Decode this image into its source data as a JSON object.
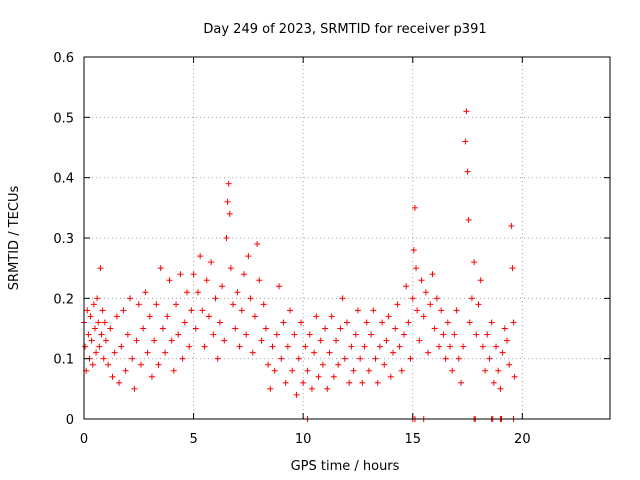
{
  "chart_data": {
    "type": "scatter",
    "title": "Day 249 of 2023, SRMTID for receiver p391",
    "xlabel": "GPS time / hours",
    "ylabel": "SRMTID / TECUs",
    "xlim": [
      0,
      24
    ],
    "ylim": [
      0,
      0.6
    ],
    "xticks": [
      0,
      5,
      10,
      15,
      20
    ],
    "xtick_labels": [
      "0",
      "5",
      "10",
      "15",
      "20"
    ],
    "yticks": [
      0,
      0.1,
      0.2,
      0.3,
      0.4,
      0.5,
      0.6
    ],
    "ytick_labels": [
      "0",
      "0.1",
      "0.2",
      "0.3",
      "0.4",
      "0.5",
      "0.6"
    ],
    "grid": true,
    "marker": "+",
    "color": "#ff0000",
    "series": [
      {
        "name": "SRMTID",
        "points": [
          [
            0.0,
            0.16
          ],
          [
            0.05,
            0.12
          ],
          [
            0.1,
            0.08
          ],
          [
            0.15,
            0.18
          ],
          [
            0.2,
            0.14
          ],
          [
            0.25,
            0.1
          ],
          [
            0.3,
            0.17
          ],
          [
            0.35,
            0.13
          ],
          [
            0.4,
            0.09
          ],
          [
            0.45,
            0.19
          ],
          [
            0.5,
            0.15
          ],
          [
            0.55,
            0.11
          ],
          [
            0.6,
            0.2
          ],
          [
            0.65,
            0.16
          ],
          [
            0.7,
            0.12
          ],
          [
            0.75,
            0.25
          ],
          [
            0.8,
            0.14
          ],
          [
            0.85,
            0.18
          ],
          [
            0.9,
            0.1
          ],
          [
            0.95,
            0.16
          ],
          [
            1.0,
            0.13
          ],
          [
            1.1,
            0.09
          ],
          [
            1.2,
            0.15
          ],
          [
            1.3,
            0.07
          ],
          [
            1.4,
            0.11
          ],
          [
            1.5,
            0.17
          ],
          [
            1.6,
            0.06
          ],
          [
            1.7,
            0.12
          ],
          [
            1.8,
            0.18
          ],
          [
            1.9,
            0.08
          ],
          [
            2.0,
            0.14
          ],
          [
            2.1,
            0.2
          ],
          [
            2.2,
            0.1
          ],
          [
            2.3,
            0.05
          ],
          [
            2.4,
            0.13
          ],
          [
            2.5,
            0.19
          ],
          [
            2.6,
            0.09
          ],
          [
            2.7,
            0.15
          ],
          [
            2.8,
            0.21
          ],
          [
            2.9,
            0.11
          ],
          [
            3.0,
            0.17
          ],
          [
            3.1,
            0.07
          ],
          [
            3.2,
            0.13
          ],
          [
            3.3,
            0.19
          ],
          [
            3.4,
            0.09
          ],
          [
            3.5,
            0.25
          ],
          [
            3.6,
            0.15
          ],
          [
            3.7,
            0.11
          ],
          [
            3.8,
            0.17
          ],
          [
            3.9,
            0.23
          ],
          [
            4.0,
            0.13
          ],
          [
            4.1,
            0.08
          ],
          [
            4.2,
            0.19
          ],
          [
            4.3,
            0.14
          ],
          [
            4.4,
            0.24
          ],
          [
            4.5,
            0.1
          ],
          [
            4.6,
            0.16
          ],
          [
            4.7,
            0.21
          ],
          [
            4.8,
            0.12
          ],
          [
            4.9,
            0.18
          ],
          [
            5.0,
            0.24
          ],
          [
            5.1,
            0.15
          ],
          [
            5.2,
            0.21
          ],
          [
            5.3,
            0.27
          ],
          [
            5.4,
            0.18
          ],
          [
            5.5,
            0.12
          ],
          [
            5.6,
            0.23
          ],
          [
            5.7,
            0.17
          ],
          [
            5.8,
            0.26
          ],
          [
            5.9,
            0.14
          ],
          [
            6.0,
            0.2
          ],
          [
            6.1,
            0.1
          ],
          [
            6.2,
            0.16
          ],
          [
            6.3,
            0.22
          ],
          [
            6.4,
            0.13
          ],
          [
            6.5,
            0.3
          ],
          [
            6.55,
            0.36
          ],
          [
            6.6,
            0.39
          ],
          [
            6.65,
            0.34
          ],
          [
            6.7,
            0.25
          ],
          [
            6.8,
            0.19
          ],
          [
            6.9,
            0.15
          ],
          [
            7.0,
            0.21
          ],
          [
            7.1,
            0.12
          ],
          [
            7.2,
            0.18
          ],
          [
            7.3,
            0.24
          ],
          [
            7.4,
            0.14
          ],
          [
            7.5,
            0.27
          ],
          [
            7.6,
            0.2
          ],
          [
            7.7,
            0.11
          ],
          [
            7.8,
            0.17
          ],
          [
            7.9,
            0.29
          ],
          [
            8.0,
            0.23
          ],
          [
            8.1,
            0.13
          ],
          [
            8.2,
            0.19
          ],
          [
            8.3,
            0.15
          ],
          [
            8.4,
            0.09
          ],
          [
            8.5,
            0.05
          ],
          [
            8.6,
            0.12
          ],
          [
            8.7,
            0.08
          ],
          [
            8.8,
            0.14
          ],
          [
            8.9,
            0.22
          ],
          [
            9.0,
            0.1
          ],
          [
            9.1,
            0.16
          ],
          [
            9.2,
            0.06
          ],
          [
            9.3,
            0.12
          ],
          [
            9.4,
            0.18
          ],
          [
            9.5,
            0.08
          ],
          [
            9.6,
            0.14
          ],
          [
            9.7,
            0.04
          ],
          [
            9.8,
            0.1
          ],
          [
            9.9,
            0.16
          ],
          [
            10.0,
            0.06
          ],
          [
            10.1,
            0.12
          ],
          [
            10.2,
            0.08
          ],
          [
            10.3,
            0.14
          ],
          [
            10.4,
            0.05
          ],
          [
            10.5,
            0.11
          ],
          [
            10.6,
            0.17
          ],
          [
            10.7,
            0.07
          ],
          [
            10.8,
            0.13
          ],
          [
            10.9,
            0.09
          ],
          [
            11.0,
            0.15
          ],
          [
            11.1,
            0.05
          ],
          [
            11.2,
            0.11
          ],
          [
            11.3,
            0.17
          ],
          [
            11.4,
            0.07
          ],
          [
            11.5,
            0.13
          ],
          [
            11.6,
            0.09
          ],
          [
            11.7,
            0.15
          ],
          [
            11.8,
            0.2
          ],
          [
            11.9,
            0.1
          ],
          [
            12.0,
            0.16
          ],
          [
            12.1,
            0.06
          ],
          [
            12.2,
            0.12
          ],
          [
            12.3,
            0.08
          ],
          [
            12.4,
            0.14
          ],
          [
            12.5,
            0.18
          ],
          [
            12.6,
            0.1
          ],
          [
            12.7,
            0.06
          ],
          [
            12.8,
            0.12
          ],
          [
            12.9,
            0.16
          ],
          [
            13.0,
            0.08
          ],
          [
            13.1,
            0.14
          ],
          [
            13.2,
            0.18
          ],
          [
            13.3,
            0.1
          ],
          [
            13.4,
            0.06
          ],
          [
            13.5,
            0.12
          ],
          [
            13.6,
            0.16
          ],
          [
            13.7,
            0.09
          ],
          [
            13.8,
            0.13
          ],
          [
            13.9,
            0.17
          ],
          [
            14.0,
            0.07
          ],
          [
            14.1,
            0.11
          ],
          [
            14.2,
            0.15
          ],
          [
            14.3,
            0.19
          ],
          [
            14.4,
            0.12
          ],
          [
            14.5,
            0.08
          ],
          [
            14.6,
            0.14
          ],
          [
            14.7,
            0.22
          ],
          [
            14.8,
            0.16
          ],
          [
            14.9,
            0.1
          ],
          [
            15.0,
            0.2
          ],
          [
            15.05,
            0.28
          ],
          [
            15.1,
            0.35
          ],
          [
            15.15,
            0.25
          ],
          [
            15.2,
            0.18
          ],
          [
            15.3,
            0.13
          ],
          [
            15.4,
            0.23
          ],
          [
            15.5,
            0.17
          ],
          [
            15.6,
            0.21
          ],
          [
            15.7,
            0.11
          ],
          [
            15.8,
            0.19
          ],
          [
            15.9,
            0.24
          ],
          [
            16.0,
            0.15
          ],
          [
            16.1,
            0.2
          ],
          [
            16.2,
            0.12
          ],
          [
            16.3,
            0.18
          ],
          [
            16.4,
            0.14
          ],
          [
            16.5,
            0.1
          ],
          [
            16.6,
            0.16
          ],
          [
            16.7,
            0.12
          ],
          [
            16.8,
            0.08
          ],
          [
            16.9,
            0.14
          ],
          [
            17.0,
            0.18
          ],
          [
            17.1,
            0.1
          ],
          [
            17.2,
            0.06
          ],
          [
            17.3,
            0.12
          ],
          [
            17.4,
            0.46
          ],
          [
            17.45,
            0.51
          ],
          [
            17.5,
            0.41
          ],
          [
            17.55,
            0.33
          ],
          [
            17.6,
            0.16
          ],
          [
            17.7,
            0.2
          ],
          [
            17.8,
            0.26
          ],
          [
            17.9,
            0.14
          ],
          [
            18.0,
            0.19
          ],
          [
            18.1,
            0.23
          ],
          [
            18.2,
            0.12
          ],
          [
            18.3,
            0.08
          ],
          [
            18.4,
            0.14
          ],
          [
            18.5,
            0.1
          ],
          [
            18.6,
            0.16
          ],
          [
            18.7,
            0.06
          ],
          [
            18.8,
            0.12
          ],
          [
            18.9,
            0.08
          ],
          [
            19.0,
            0.05
          ],
          [
            19.1,
            0.11
          ],
          [
            19.2,
            0.15
          ],
          [
            19.3,
            0.13
          ],
          [
            19.4,
            0.09
          ],
          [
            19.5,
            0.32
          ],
          [
            19.55,
            0.25
          ],
          [
            19.6,
            0.16
          ],
          [
            19.65,
            0.07
          ],
          [
            10.2,
            0.0
          ],
          [
            15.0,
            0.0
          ],
          [
            15.1,
            0.0
          ],
          [
            15.5,
            0.0
          ],
          [
            17.8,
            0.0
          ],
          [
            17.85,
            0.0
          ],
          [
            18.6,
            0.0
          ],
          [
            18.65,
            0.0
          ],
          [
            19.0,
            0.0
          ],
          [
            19.05,
            0.0
          ],
          [
            19.6,
            0.0
          ]
        ]
      }
    ]
  }
}
